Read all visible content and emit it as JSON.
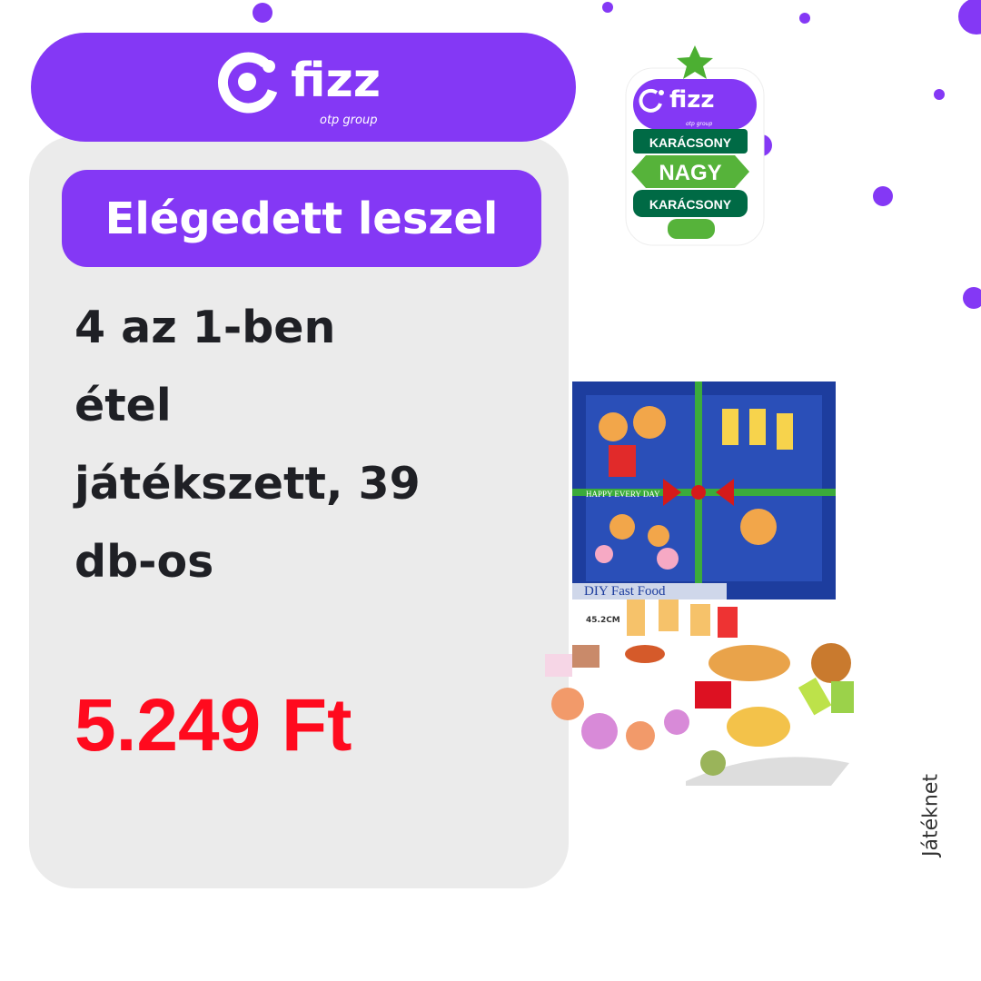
{
  "brand": {
    "logo_text": "fizz",
    "logo_sub": "otp group",
    "color": "#8438f5"
  },
  "sticker": {
    "brand": "fizz",
    "sub": "otp group",
    "line1": "KARÁCSONY",
    "line2": "NAGY",
    "line3": "KARÁCSONY"
  },
  "badge": {
    "label": "Elégedett leszel"
  },
  "product": {
    "title_lines": [
      "4 az 1-ben",
      "étel",
      "játékszett, 39",
      "db-os"
    ],
    "price": "5.249 Ft",
    "price_color": "#ff0a1e",
    "image_text": {
      "ribbon": "HAPPY EVERY DAY",
      "box": "DIY Fast Food",
      "size": "45.2CM"
    }
  },
  "vendor": "Játéknet"
}
